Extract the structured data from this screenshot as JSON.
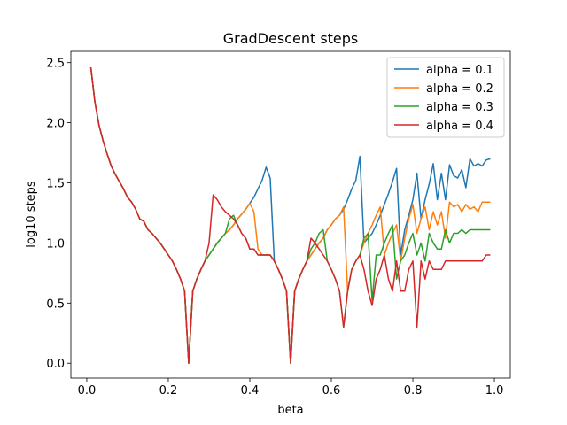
{
  "chart_data": {
    "type": "line",
    "title": "GradDescent steps",
    "xlabel": "beta",
    "ylabel": "log10 steps",
    "x": [
      0.01,
      0.02,
      0.03,
      0.04,
      0.05,
      0.06,
      0.07,
      0.08,
      0.09,
      0.1,
      0.11,
      0.12,
      0.13,
      0.14,
      0.15,
      0.16,
      0.17,
      0.18,
      0.19,
      0.2,
      0.21,
      0.22,
      0.23,
      0.24,
      0.25,
      0.26,
      0.27,
      0.28,
      0.29,
      0.3,
      0.31,
      0.32,
      0.33,
      0.34,
      0.35,
      0.36,
      0.37,
      0.38,
      0.39,
      0.4,
      0.41,
      0.42,
      0.43,
      0.44,
      0.45,
      0.46,
      0.47,
      0.48,
      0.49,
      0.5,
      0.51,
      0.52,
      0.53,
      0.54,
      0.55,
      0.56,
      0.57,
      0.58,
      0.59,
      0.6,
      0.61,
      0.62,
      0.63,
      0.64,
      0.65,
      0.66,
      0.67,
      0.68,
      0.69,
      0.7,
      0.71,
      0.72,
      0.73,
      0.74,
      0.75,
      0.76,
      0.77,
      0.78,
      0.79,
      0.8,
      0.81,
      0.82,
      0.83,
      0.84,
      0.85,
      0.86,
      0.87,
      0.88,
      0.89,
      0.9,
      0.91,
      0.92,
      0.93,
      0.94,
      0.95,
      0.96,
      0.97,
      0.98,
      0.99
    ],
    "series": [
      {
        "name": "alpha = 0.1",
        "color": "#1f77b4",
        "values": [
          2.46,
          2.17,
          1.98,
          1.85,
          1.74,
          1.64,
          1.57,
          1.51,
          1.45,
          1.38,
          1.34,
          1.28,
          1.2,
          1.18,
          1.11,
          1.08,
          1.04,
          1.0,
          0.95,
          0.9,
          0.85,
          0.78,
          0.7,
          0.6,
          0.0,
          0.6,
          0.7,
          0.78,
          0.85,
          0.9,
          0.95,
          1.0,
          1.04,
          1.08,
          1.11,
          1.15,
          1.2,
          1.24,
          1.28,
          1.33,
          1.38,
          1.45,
          1.52,
          1.63,
          1.54,
          0.85,
          0.78,
          0.7,
          0.6,
          0.0,
          0.6,
          0.7,
          0.78,
          0.85,
          0.9,
          0.95,
          1.0,
          1.04,
          1.11,
          1.15,
          1.2,
          1.23,
          1.28,
          1.36,
          1.45,
          1.52,
          1.72,
          1.0,
          1.04,
          1.08,
          1.15,
          1.23,
          1.32,
          1.41,
          1.51,
          1.62,
          0.9,
          1.11,
          1.23,
          1.36,
          1.58,
          1.2,
          1.36,
          1.49,
          1.66,
          1.36,
          1.58,
          1.36,
          1.65,
          1.56,
          1.54,
          1.61,
          1.46,
          1.7,
          1.64,
          1.66,
          1.64,
          1.69,
          1.7
        ]
      },
      {
        "name": "alpha = 0.2",
        "color": "#ff7f0e",
        "values": [
          2.46,
          2.17,
          1.98,
          1.85,
          1.74,
          1.64,
          1.57,
          1.51,
          1.45,
          1.38,
          1.34,
          1.28,
          1.2,
          1.18,
          1.11,
          1.08,
          1.04,
          1.0,
          0.95,
          0.9,
          0.85,
          0.78,
          0.7,
          0.6,
          0.0,
          0.6,
          0.7,
          0.78,
          0.85,
          0.9,
          0.95,
          1.0,
          1.04,
          1.08,
          1.11,
          1.15,
          1.2,
          1.24,
          1.28,
          1.33,
          1.26,
          0.95,
          0.9,
          0.9,
          0.9,
          0.85,
          0.78,
          0.7,
          0.6,
          0.0,
          0.6,
          0.7,
          0.78,
          0.85,
          0.9,
          0.95,
          1.0,
          1.04,
          1.11,
          1.15,
          1.2,
          1.23,
          1.3,
          0.6,
          0.78,
          0.85,
          0.9,
          1.0,
          1.08,
          1.15,
          1.23,
          1.3,
          0.9,
          1.0,
          1.08,
          1.15,
          0.85,
          1.04,
          1.2,
          1.32,
          1.08,
          1.2,
          1.3,
          1.11,
          1.26,
          1.15,
          1.26,
          1.04,
          1.34,
          1.3,
          1.32,
          1.26,
          1.32,
          1.28,
          1.3,
          1.26,
          1.34,
          1.34,
          1.34
        ]
      },
      {
        "name": "alpha = 0.3",
        "color": "#2ca02c",
        "values": [
          2.46,
          2.17,
          1.98,
          1.85,
          1.74,
          1.64,
          1.57,
          1.51,
          1.45,
          1.38,
          1.34,
          1.28,
          1.2,
          1.18,
          1.11,
          1.08,
          1.04,
          1.0,
          0.95,
          0.9,
          0.85,
          0.78,
          0.7,
          0.6,
          0.0,
          0.6,
          0.7,
          0.78,
          0.85,
          0.9,
          0.95,
          1.0,
          1.04,
          1.08,
          1.2,
          1.23,
          1.15,
          1.08,
          1.04,
          0.95,
          0.95,
          0.9,
          0.9,
          0.9,
          0.9,
          0.85,
          0.78,
          0.7,
          0.6,
          0.0,
          0.6,
          0.7,
          0.78,
          0.85,
          0.95,
          1.0,
          1.08,
          1.11,
          0.85,
          0.78,
          0.7,
          0.6,
          0.3,
          0.6,
          0.78,
          0.85,
          0.9,
          1.04,
          1.08,
          0.52,
          0.9,
          0.9,
          1.0,
          1.08,
          1.15,
          0.7,
          0.85,
          0.9,
          1.0,
          1.08,
          0.9,
          1.0,
          0.85,
          1.08,
          1.0,
          0.95,
          0.95,
          1.11,
          1.0,
          1.08,
          1.08,
          1.11,
          1.08,
          1.11,
          1.11,
          1.11,
          1.11,
          1.11,
          1.11
        ]
      },
      {
        "name": "alpha = 0.4",
        "color": "#d62728",
        "values": [
          2.46,
          2.17,
          1.98,
          1.85,
          1.74,
          1.64,
          1.57,
          1.51,
          1.45,
          1.38,
          1.34,
          1.28,
          1.2,
          1.18,
          1.11,
          1.08,
          1.04,
          1.0,
          0.95,
          0.9,
          0.85,
          0.78,
          0.7,
          0.6,
          0.0,
          0.6,
          0.7,
          0.78,
          0.85,
          1.0,
          1.4,
          1.36,
          1.3,
          1.26,
          1.23,
          1.2,
          1.15,
          1.08,
          1.04,
          0.95,
          0.95,
          0.9,
          0.9,
          0.9,
          0.9,
          0.85,
          0.78,
          0.7,
          0.6,
          0.0,
          0.6,
          0.7,
          0.78,
          0.85,
          1.04,
          1.0,
          0.95,
          0.9,
          0.85,
          0.78,
          0.7,
          0.6,
          0.3,
          0.6,
          0.78,
          0.85,
          0.9,
          0.78,
          0.6,
          0.48,
          0.7,
          0.78,
          0.9,
          0.7,
          0.6,
          0.85,
          0.6,
          0.6,
          0.78,
          0.85,
          0.3,
          0.85,
          0.7,
          0.85,
          0.78,
          0.78,
          0.78,
          0.85,
          0.85,
          0.85,
          0.85,
          0.85,
          0.85,
          0.85,
          0.85,
          0.85,
          0.85,
          0.9,
          0.9
        ]
      }
    ],
    "xlim": [
      -0.039,
      1.039
    ],
    "ylim": [
      -0.1235,
      2.5935
    ],
    "xticks": [
      {
        "value": 0.0,
        "label": "0.0"
      },
      0.2,
      0.4,
      0.6,
      0.8,
      {
        "value": 1.0,
        "label": "1.0"
      }
    ],
    "yticks": [
      {
        "value": 0.0,
        "label": "0.0"
      },
      0.5,
      {
        "value": 1.0,
        "label": "1.0"
      },
      1.5,
      {
        "value": 2.0,
        "label": "2.0"
      },
      2.5
    ],
    "legend": "upper right"
  }
}
